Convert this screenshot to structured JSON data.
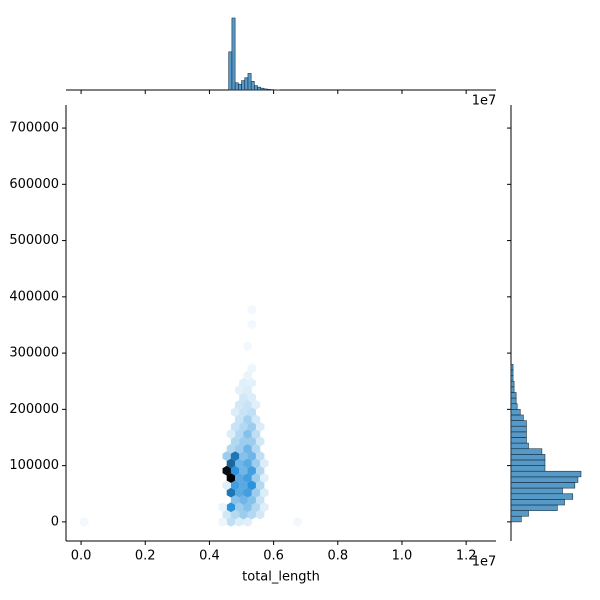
{
  "chart_data": {
    "type": "hexbin",
    "xlabel": "total_length",
    "x_offset_label": "1e7",
    "color": "#1f77b4",
    "xlim": [
      -470000,
      12930000
    ],
    "ylim": [
      -34000,
      741000
    ],
    "xticks": [
      {
        "value": 0,
        "label": "0.0"
      },
      {
        "value": 2000000,
        "label": "0.2"
      },
      {
        "value": 4000000,
        "label": "0.4"
      },
      {
        "value": 6000000,
        "label": "0.6"
      },
      {
        "value": 8000000,
        "label": "0.8"
      },
      {
        "value": 10000000,
        "label": "1.0"
      },
      {
        "value": 12000000,
        "label": "1.2"
      }
    ],
    "yticks": [
      0,
      100000,
      200000,
      300000,
      400000,
      500000,
      600000,
      700000
    ],
    "hexbins": {
      "x": [
        4670000,
        4930000,
        5190000,
        4410000,
        6750000,
        100000,
        4540000,
        4800000,
        5060000,
        5320000,
        5580000,
        4670000,
        4930000,
        5190000,
        5450000,
        5710000,
        4410000,
        4800000,
        5060000,
        5320000,
        5580000,
        4670000,
        4930000,
        5190000,
        5450000,
        5710000,
        4800000,
        5060000,
        5320000,
        5580000,
        4540000,
        4670000,
        4930000,
        5190000,
        5450000,
        5710000,
        4540000,
        4800000,
        5060000,
        5320000,
        5580000,
        4670000,
        4930000,
        5190000,
        5450000,
        5710000,
        4540000,
        4800000,
        5060000,
        5320000,
        5580000,
        4670000,
        4930000,
        5190000,
        5450000,
        4800000,
        5060000,
        5320000,
        5580000,
        4930000,
        5190000,
        5450000,
        4670000,
        4800000,
        5060000,
        5320000,
        5580000,
        4930000,
        5190000,
        5450000,
        4800000,
        5060000,
        5320000,
        4930000,
        5190000,
        5450000,
        5060000,
        5320000,
        4930000,
        5190000,
        5060000,
        5320000,
        5190000,
        5320000,
        5190000,
        5320000,
        5320000
      ],
      "y": [
        0,
        0,
        0,
        0,
        0,
        0,
        13000,
        13000,
        13000,
        13000,
        13000,
        26000,
        26000,
        26000,
        26000,
        26000,
        26000,
        39000,
        39000,
        39000,
        39000,
        52000,
        52000,
        52000,
        52000,
        52000,
        65000,
        65000,
        65000,
        65000,
        65000,
        78000,
        78000,
        78000,
        78000,
        78000,
        91000,
        91000,
        91000,
        91000,
        91000,
        104000,
        104000,
        104000,
        104000,
        104000,
        117000,
        117000,
        117000,
        117000,
        117000,
        130000,
        130000,
        130000,
        130000,
        143000,
        143000,
        143000,
        143000,
        156000,
        156000,
        156000,
        156000,
        169000,
        169000,
        169000,
        169000,
        182000,
        182000,
        182000,
        195000,
        195000,
        195000,
        208000,
        208000,
        208000,
        221000,
        221000,
        234000,
        234000,
        247000,
        247000,
        260000,
        273000,
        312000,
        351000,
        377000
      ],
      "counts": [
        12,
        6,
        5,
        2,
        1,
        1,
        8,
        15,
        20,
        15,
        8,
        45,
        20,
        25,
        15,
        5,
        3,
        25,
        30,
        25,
        10,
        55,
        35,
        40,
        20,
        6,
        40,
        35,
        45,
        15,
        5,
        95,
        35,
        40,
        20,
        5,
        90,
        45,
        30,
        40,
        15,
        60,
        30,
        35,
        20,
        6,
        20,
        55,
        25,
        30,
        12,
        15,
        20,
        30,
        15,
        15,
        20,
        20,
        8,
        15,
        25,
        12,
        6,
        10,
        15,
        20,
        6,
        10,
        18,
        8,
        6,
        10,
        12,
        8,
        10,
        5,
        8,
        6,
        4,
        6,
        5,
        4,
        3,
        2,
        1,
        1,
        1
      ]
    },
    "x_hist": {
      "bins": [
        4600000,
        4700000,
        4800000,
        4900000,
        5000000,
        5100000,
        5200000,
        5300000,
        5400000,
        5500000,
        5600000,
        5700000,
        5800000,
        5900000,
        6000000,
        6100000,
        6200000
      ],
      "counts": [
        530,
        1000,
        100,
        80,
        130,
        170,
        230,
        120,
        60,
        40,
        25,
        15,
        10,
        6,
        3,
        2
      ]
    },
    "y_hist": {
      "bins": [
        0,
        10000,
        20000,
        30000,
        40000,
        50000,
        60000,
        70000,
        80000,
        90000,
        100000,
        110000,
        120000,
        130000,
        140000,
        150000,
        160000,
        170000,
        180000,
        190000,
        200000,
        210000,
        220000,
        230000,
        240000,
        250000,
        260000,
        270000,
        280000
      ],
      "counts": [
        10,
        17,
        45,
        52,
        60,
        50,
        62,
        65,
        68,
        33,
        33,
        33,
        30,
        17,
        15,
        15,
        15,
        15,
        12,
        9,
        6,
        5,
        5,
        3,
        3,
        2,
        2,
        2
      ]
    }
  }
}
